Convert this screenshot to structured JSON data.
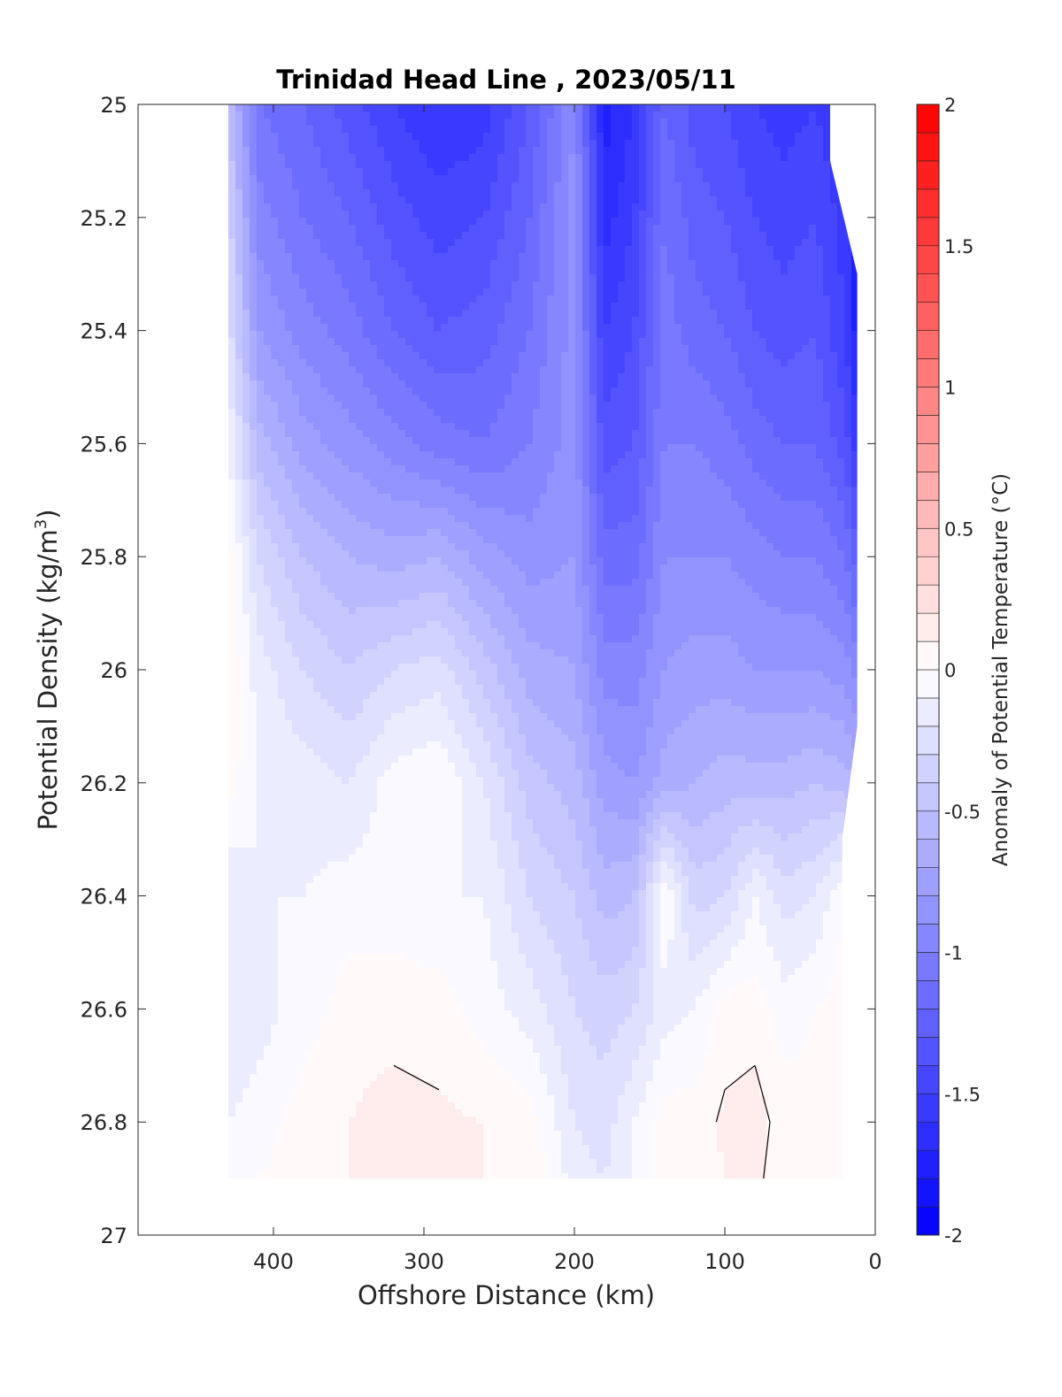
{
  "chart_data": {
    "type": "heatmap",
    "title": "Trinidad Head Line , 2023/05/11",
    "xlabel": "Offshore Distance (km)",
    "ylabel": "Potential Density (kg/m³)",
    "ylabel_parts": {
      "main": "Potential Density (kg/m",
      "sup": "3",
      "end": ")"
    },
    "colorbar_label": "Anomaly of Potential Temperature (°C)",
    "xlim": [
      490,
      0
    ],
    "x_reversed": true,
    "ylim": [
      25,
      27
    ],
    "y_reversed": true,
    "x_ticks": [
      "400",
      "300",
      "200",
      "100",
      "0"
    ],
    "x_tick_values": [
      400,
      300,
      200,
      100,
      0
    ],
    "y_ticks": [
      "25",
      "25.2",
      "25.4",
      "25.6",
      "25.8",
      "26",
      "26.2",
      "26.4",
      "26.6",
      "26.8",
      "27"
    ],
    "y_tick_values": [
      25,
      25.2,
      25.4,
      25.6,
      25.8,
      26,
      26.2,
      26.4,
      26.6,
      26.8,
      27
    ],
    "colorbar_ticks": [
      "2",
      "1.5",
      "1",
      "0.5",
      "0",
      "-0.5",
      "-1",
      "-1.5",
      "-2"
    ],
    "colorbar_tick_values": [
      2,
      1.5,
      1,
      0.5,
      0,
      -0.5,
      -1,
      -1.5,
      -2
    ],
    "clim": [
      -2,
      2
    ],
    "colorbar_levels": 40,
    "contour_levels": [
      0.1
    ],
    "colormap": {
      "negative": "#0000ff",
      "zero": "#ffffff",
      "positive": "#ff0000"
    },
    "grid": false,
    "data_extent": {
      "x": [
        430,
        12
      ],
      "y_top": 25,
      "y_bottom": 26.9
    },
    "stations_km": [
      430,
      410,
      380,
      350,
      320,
      290,
      260,
      230,
      200,
      180,
      160,
      140,
      120,
      100,
      80,
      60,
      40,
      20,
      12
    ],
    "density_levels": [
      25.0,
      25.2,
      25.4,
      25.6,
      25.8,
      26.0,
      26.2,
      26.4,
      26.6,
      26.8,
      26.9
    ],
    "anomaly": [
      [
        -0.5,
        -1.1,
        -1.2,
        -1.35,
        -1.5,
        -1.6,
        -1.55,
        -1.3,
        -0.9,
        -1.75,
        -1.6,
        -1.2,
        -1.35,
        -1.4,
        -1.5,
        -1.55,
        -1.5,
        -1.6,
        -1.7
      ],
      [
        -0.35,
        -0.95,
        -1.1,
        -1.2,
        -1.35,
        -1.45,
        -1.4,
        -1.2,
        -0.85,
        -1.65,
        -1.5,
        -1.1,
        -1.25,
        -1.3,
        -1.4,
        -1.45,
        -1.4,
        -1.55,
        -1.75
      ],
      [
        -0.25,
        -0.8,
        -0.95,
        -1.05,
        -1.2,
        -1.3,
        -1.25,
        -1.1,
        -0.85,
        -1.5,
        -1.4,
        -1.05,
        -1.15,
        -1.2,
        -1.3,
        -1.35,
        -1.3,
        -1.5,
        -1.75
      ],
      [
        -0.1,
        -0.55,
        -0.75,
        -0.85,
        -0.95,
        -1.05,
        -1.1,
        -1.0,
        -0.85,
        -1.35,
        -1.3,
        -1.0,
        -1.0,
        -1.05,
        -1.15,
        -1.2,
        -1.2,
        -1.35,
        -1.55
      ],
      [
        0.05,
        -0.3,
        -0.5,
        -0.6,
        -0.65,
        -0.6,
        -0.75,
        -0.85,
        -0.8,
        -1.15,
        -1.15,
        -0.9,
        -0.9,
        -0.9,
        -0.95,
        -1.0,
        -1.0,
        -1.1,
        -1.25
      ],
      [
        0.1,
        -0.15,
        -0.3,
        -0.4,
        -0.3,
        -0.25,
        -0.45,
        -0.65,
        -0.7,
        -0.95,
        -0.95,
        -0.8,
        -0.75,
        -0.75,
        -0.8,
        -0.8,
        -0.8,
        -0.85,
        -0.95
      ],
      [
        0.05,
        -0.1,
        -0.15,
        -0.2,
        -0.05,
        0.0,
        -0.2,
        -0.45,
        -0.55,
        -0.75,
        -0.8,
        -0.65,
        -0.6,
        -0.55,
        -0.55,
        -0.55,
        -0.5,
        -0.55,
        -0.6
      ],
      [
        -0.2,
        -0.1,
        -0.1,
        -0.05,
        -0.05,
        -0.1,
        -0.1,
        -0.3,
        -0.4,
        -0.55,
        -0.5,
        0.0,
        -0.35,
        -0.3,
        -0.1,
        -0.25,
        -0.2,
        0.0,
        -0.3
      ],
      [
        -0.2,
        -0.15,
        -0.05,
        0.05,
        0.05,
        0.05,
        -0.05,
        -0.15,
        -0.3,
        -0.35,
        -0.3,
        -0.15,
        -0.1,
        0.05,
        0.05,
        -0.05,
        0.0,
        0.05,
        0.0
      ],
      [
        -0.1,
        -0.05,
        0.05,
        0.1,
        0.15,
        0.12,
        0.1,
        0.05,
        -0.2,
        -0.25,
        -0.1,
        0.05,
        0.05,
        0.12,
        0.15,
        0.05,
        0.05,
        0.0,
        0.0
      ],
      [
        -0.1,
        0.0,
        0.05,
        0.1,
        0.1,
        0.12,
        0.1,
        0.1,
        -0.15,
        -0.2,
        -0.1,
        0.05,
        0.05,
        0.1,
        0.12,
        0.05,
        0.05,
        0.0,
        0.0
      ]
    ]
  }
}
